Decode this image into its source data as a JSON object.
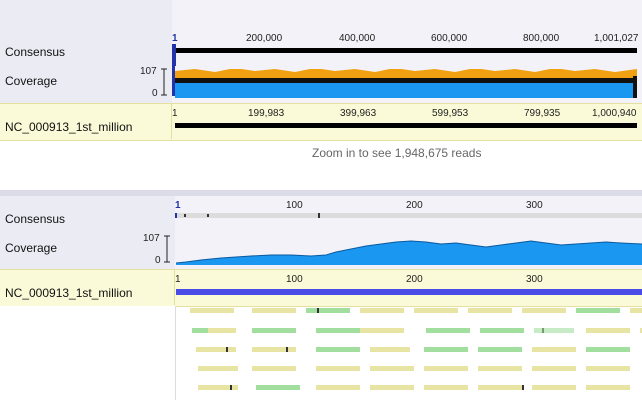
{
  "top": {
    "consensus_label": "Consensus",
    "coverage_label": "Coverage",
    "cov_max": "107",
    "cov_min": "0",
    "ruler_ticks": [
      "1",
      "200,000",
      "400,000",
      "600,000",
      "800,000",
      "1,001,027"
    ],
    "ref_ticks": [
      "1",
      "199,983",
      "399,963",
      "599,953",
      "799,935",
      "1,000,940"
    ],
    "ref_name": "NC_000913_1st_million",
    "zoom_message": "Zoom in to see 1,948,675 reads"
  },
  "bottom": {
    "consensus_label": "Consensus",
    "coverage_label": "Coverage",
    "cov_max": "107",
    "cov_min": "0",
    "ruler_ticks": [
      "1",
      "100",
      "200",
      "300"
    ],
    "ref_ticks": [
      "1",
      "100",
      "200",
      "300"
    ],
    "ref_name": "NC_000913_1st_million"
  },
  "colors": {
    "coverage_blue": "#1a97f0",
    "coverage_orange": "#f0a010",
    "reference_blue": "#4a4ae6",
    "read_yellow": "#e8e4a4",
    "read_green": "#a2de9e"
  }
}
